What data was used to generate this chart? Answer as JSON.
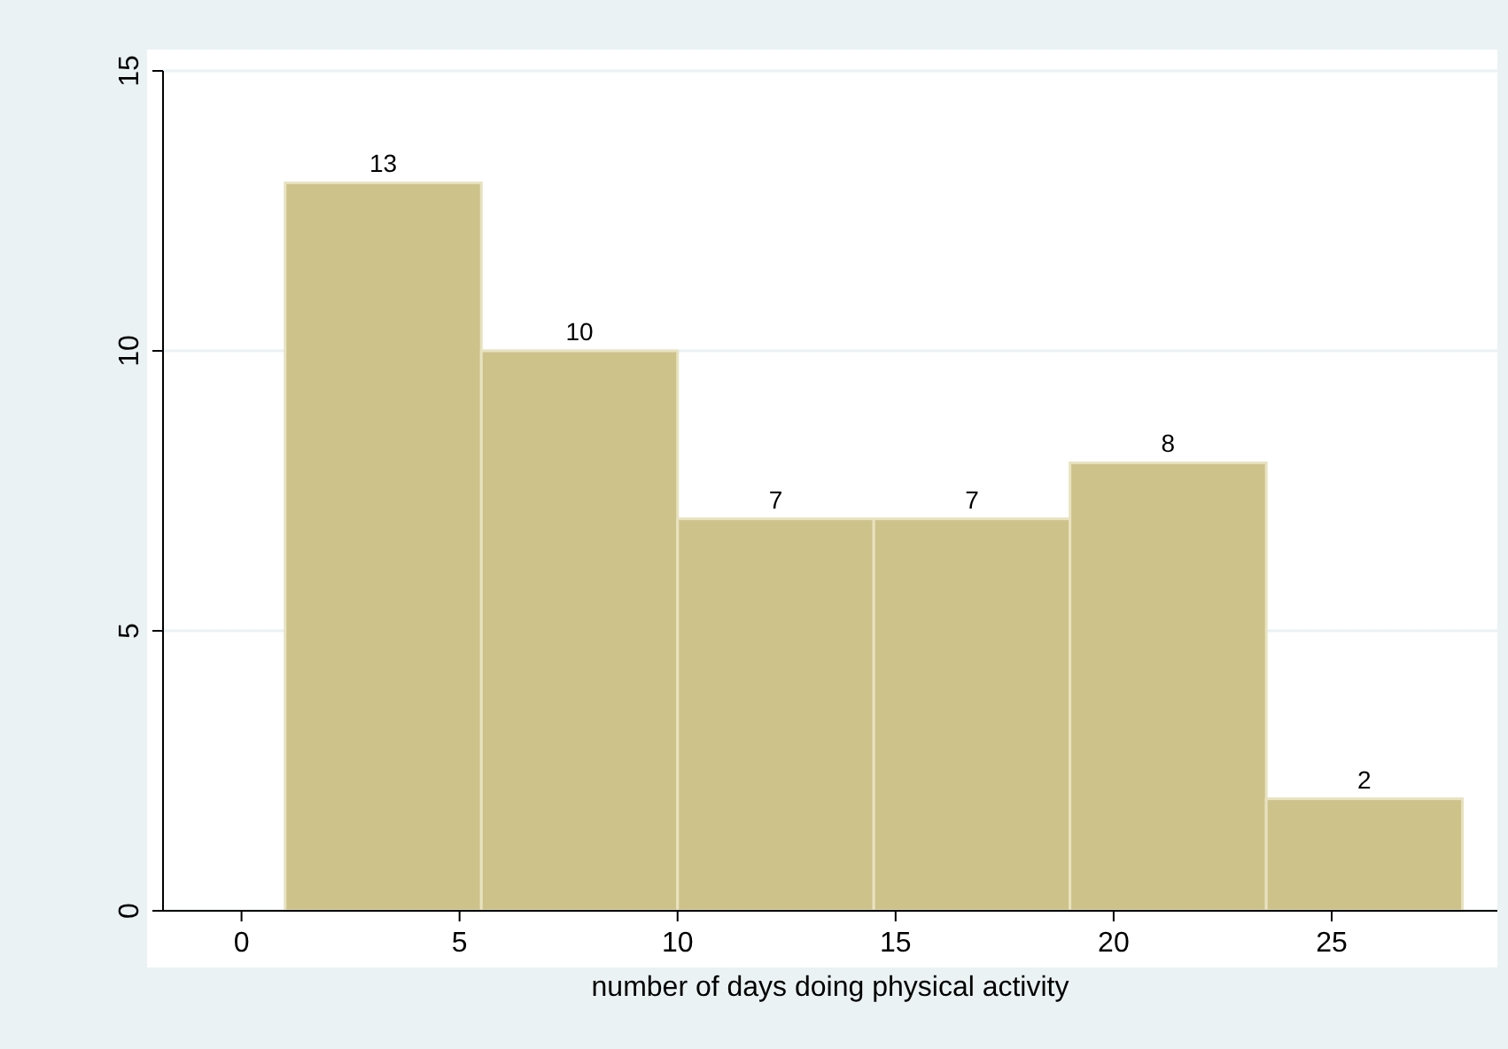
{
  "chart_data": {
    "type": "histogram",
    "xlabel": "number of days doing physical activity",
    "bins": [
      1,
      5.5,
      10,
      14.5,
      19,
      23.5,
      28
    ],
    "values": [
      13,
      10,
      7,
      7,
      8,
      2
    ],
    "color": "#cdc28a",
    "data_labels": true,
    "xlim": [
      -1.8,
      28.8
    ],
    "xticks": [
      0,
      5,
      10,
      15,
      20,
      25
    ],
    "ylim": [
      0,
      15
    ],
    "yticks": [
      0,
      5,
      10,
      15
    ],
    "grid": "y"
  }
}
